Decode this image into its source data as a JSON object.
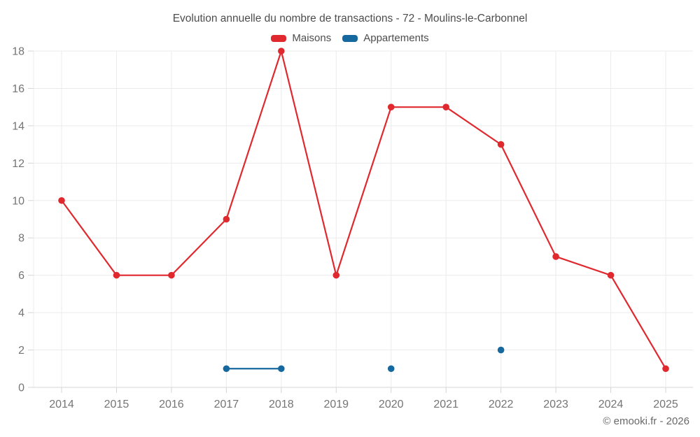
{
  "page": {
    "footer": "© emooki.fr - 2026"
  },
  "chart_data": {
    "type": "line",
    "title": "Evolution annuelle du nombre de transactions - 72 - Moulins-le-Carbonnel",
    "categories": [
      "2014",
      "2015",
      "2016",
      "2017",
      "2018",
      "2019",
      "2020",
      "2021",
      "2022",
      "2023",
      "2024",
      "2025"
    ],
    "series": [
      {
        "name": "Maisons",
        "color": "#e0292e",
        "values": [
          10,
          6,
          6,
          9,
          18,
          6,
          15,
          15,
          13,
          7,
          6,
          1
        ]
      },
      {
        "name": "Appartements",
        "color": "#16699f",
        "values": [
          null,
          null,
          null,
          1,
          1,
          null,
          1,
          null,
          2,
          null,
          null,
          null
        ]
      }
    ],
    "ylim": [
      0,
      18
    ],
    "ytick_step": 2,
    "grid": true,
    "legend_position": "top",
    "colors": {
      "gridline": "#ebebeb",
      "axis": "#d4d4d4",
      "tick_text": "#757575"
    }
  }
}
